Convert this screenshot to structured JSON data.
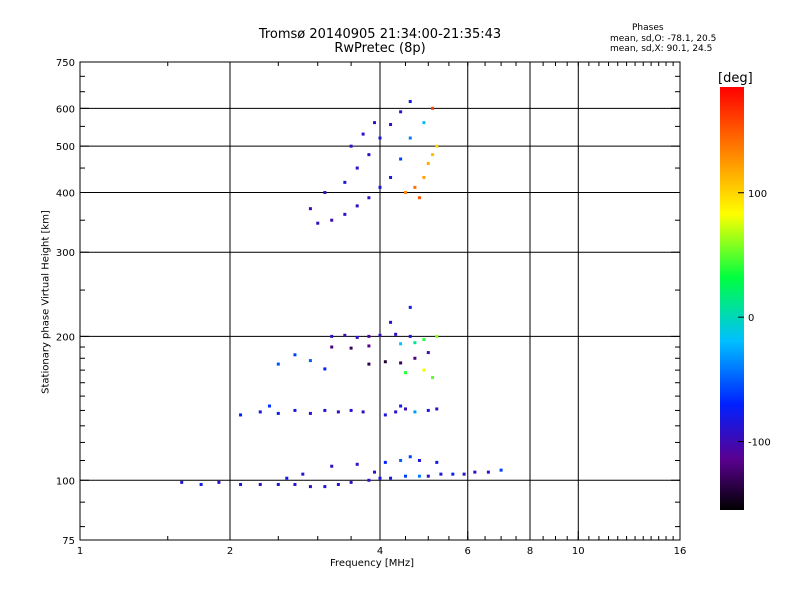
{
  "header": {
    "title": "Tromsø 20140905 21:34:00-21:35:43",
    "subtitle": "RwPretec (8p)",
    "phases_title": "Phases",
    "phases_o": "mean, sd,O: -78.1, 20.5",
    "phases_x": "mean, sd,X:  90.1, 24.5"
  },
  "colorbar": {
    "unit": "[deg]",
    "ticks": [
      {
        "value": 100,
        "label": "100"
      },
      {
        "value": 0,
        "label": "0"
      },
      {
        "value": -100,
        "label": "-100"
      }
    ],
    "range": [
      -155,
      185
    ]
  },
  "chart_data": {
    "type": "scatter",
    "title": "Tromsø 20140905 21:34:00-21:35:43",
    "subtitle": "RwPretec (8p)",
    "xlabel": "Frequency [MHz]",
    "ylabel": "Stationary phase Virtual Height [km]",
    "x_scale": "log",
    "y_scale": "log",
    "xlim": [
      1,
      16
    ],
    "ylim": [
      75,
      750
    ],
    "x_ticks": [
      1,
      2,
      4,
      6,
      8,
      10,
      16
    ],
    "x_tick_labels": [
      "1",
      "2",
      "4",
      "6",
      "8",
      "10",
      "16"
    ],
    "y_ticks": [
      75,
      100,
      200,
      300,
      400,
      500,
      600,
      750
    ],
    "y_tick_labels": [
      "75",
      "100",
      "200",
      "300",
      "400",
      "500",
      "600",
      "750"
    ],
    "grid_x": [
      2,
      4,
      6,
      8,
      10
    ],
    "grid_y": [
      100,
      200,
      300,
      400,
      500,
      600
    ],
    "colorbar_label": "[deg]",
    "series": [
      {
        "points": [
          [
            1.6,
            99,
            -85
          ],
          [
            1.75,
            98,
            -80
          ],
          [
            1.9,
            99,
            -90
          ],
          [
            2.1,
            98,
            -85
          ],
          [
            2.3,
            98,
            -95
          ],
          [
            2.5,
            98,
            -85
          ],
          [
            2.7,
            98,
            -90
          ],
          [
            2.9,
            97,
            -95
          ],
          [
            3.1,
            97,
            -85
          ],
          [
            3.3,
            98,
            -90
          ],
          [
            3.5,
            99,
            -95
          ],
          [
            3.8,
            100,
            -90
          ],
          [
            4.0,
            101,
            -85
          ],
          [
            4.2,
            101,
            -80
          ],
          [
            4.5,
            102,
            -60
          ],
          [
            4.8,
            102,
            -40
          ],
          [
            5.0,
            102,
            -90
          ],
          [
            5.3,
            103,
            -85
          ],
          [
            5.6,
            103,
            -70
          ],
          [
            5.9,
            103,
            -95
          ],
          [
            6.2,
            104,
            -90
          ],
          [
            6.6,
            104,
            -85
          ],
          [
            7.0,
            105,
            -60
          ],
          [
            3.2,
            107,
            -95
          ],
          [
            3.6,
            108,
            -90
          ],
          [
            4.1,
            109,
            -70
          ],
          [
            4.4,
            110,
            -50
          ],
          [
            4.8,
            110,
            -85
          ],
          [
            5.2,
            109,
            -80
          ],
          [
            4.6,
            112,
            -60
          ],
          [
            3.9,
            104,
            -90
          ],
          [
            2.8,
            103,
            -85
          ],
          [
            2.6,
            101,
            -80
          ]
        ]
      },
      {
        "points": [
          [
            2.1,
            137,
            -70
          ],
          [
            2.3,
            139,
            -85
          ],
          [
            2.5,
            138,
            -75
          ],
          [
            2.7,
            140,
            -80
          ],
          [
            2.4,
            143,
            -65
          ],
          [
            2.9,
            138,
            -90
          ],
          [
            3.1,
            140,
            -85
          ],
          [
            3.3,
            139,
            -95
          ],
          [
            3.5,
            140,
            -90
          ],
          [
            3.7,
            139,
            -95
          ],
          [
            4.1,
            137,
            -85
          ],
          [
            4.3,
            139,
            -90
          ],
          [
            4.5,
            141,
            -100
          ],
          [
            4.7,
            139,
            -30
          ],
          [
            5.0,
            140,
            -85
          ],
          [
            5.2,
            141,
            -95
          ],
          [
            4.4,
            143,
            -80
          ]
        ]
      },
      {
        "points": [
          [
            3.2,
            200,
            -95
          ],
          [
            3.4,
            201,
            -100
          ],
          [
            3.6,
            199,
            -90
          ],
          [
            3.8,
            200,
            -105
          ],
          [
            4.0,
            201,
            -95
          ],
          [
            4.3,
            202,
            -90
          ],
          [
            4.6,
            200,
            -85
          ],
          [
            3.2,
            190,
            -120
          ],
          [
            3.5,
            189,
            -130
          ],
          [
            3.8,
            191,
            -115
          ],
          [
            4.4,
            193,
            -20
          ],
          [
            4.7,
            194,
            10
          ],
          [
            4.9,
            197,
            40
          ],
          [
            5.2,
            200,
            60
          ],
          [
            3.8,
            175,
            -135
          ],
          [
            4.1,
            177,
            -140
          ],
          [
            4.4,
            176,
            -130
          ],
          [
            4.7,
            180,
            -120
          ],
          [
            5.0,
            185,
            -100
          ],
          [
            4.5,
            168,
            40
          ],
          [
            4.9,
            170,
            80
          ],
          [
            2.7,
            183,
            -60
          ],
          [
            2.9,
            178,
            -50
          ],
          [
            3.1,
            171,
            -70
          ],
          [
            2.5,
            175,
            -55
          ],
          [
            5.1,
            164,
            50
          ],
          [
            4.2,
            214,
            -90
          ],
          [
            4.6,
            230,
            -80
          ]
        ]
      },
      {
        "points": [
          [
            3.0,
            345,
            -95
          ],
          [
            3.2,
            350,
            -100
          ],
          [
            3.4,
            360,
            -90
          ],
          [
            3.6,
            375,
            -95
          ],
          [
            3.8,
            390,
            -90
          ],
          [
            4.0,
            410,
            -85
          ],
          [
            4.2,
            430,
            -80
          ],
          [
            3.4,
            420,
            -85
          ],
          [
            3.6,
            450,
            -90
          ],
          [
            3.8,
            480,
            -95
          ],
          [
            4.0,
            520,
            -85
          ],
          [
            4.2,
            555,
            -90
          ],
          [
            4.4,
            590,
            -85
          ],
          [
            4.6,
            620,
            -80
          ],
          [
            3.5,
            500,
            -95
          ],
          [
            3.7,
            530,
            -90
          ],
          [
            3.9,
            560,
            -90
          ],
          [
            2.9,
            370,
            -100
          ],
          [
            3.1,
            400,
            -95
          ],
          [
            4.5,
            400,
            130
          ],
          [
            4.7,
            410,
            140
          ],
          [
            4.9,
            430,
            120
          ],
          [
            5.0,
            460,
            115
          ],
          [
            5.1,
            480,
            110
          ],
          [
            5.2,
            500,
            100
          ],
          [
            4.8,
            390,
            150
          ],
          [
            4.6,
            520,
            -40
          ],
          [
            4.9,
            560,
            -20
          ],
          [
            5.1,
            600,
            160
          ],
          [
            4.4,
            470,
            -60
          ]
        ]
      }
    ]
  }
}
